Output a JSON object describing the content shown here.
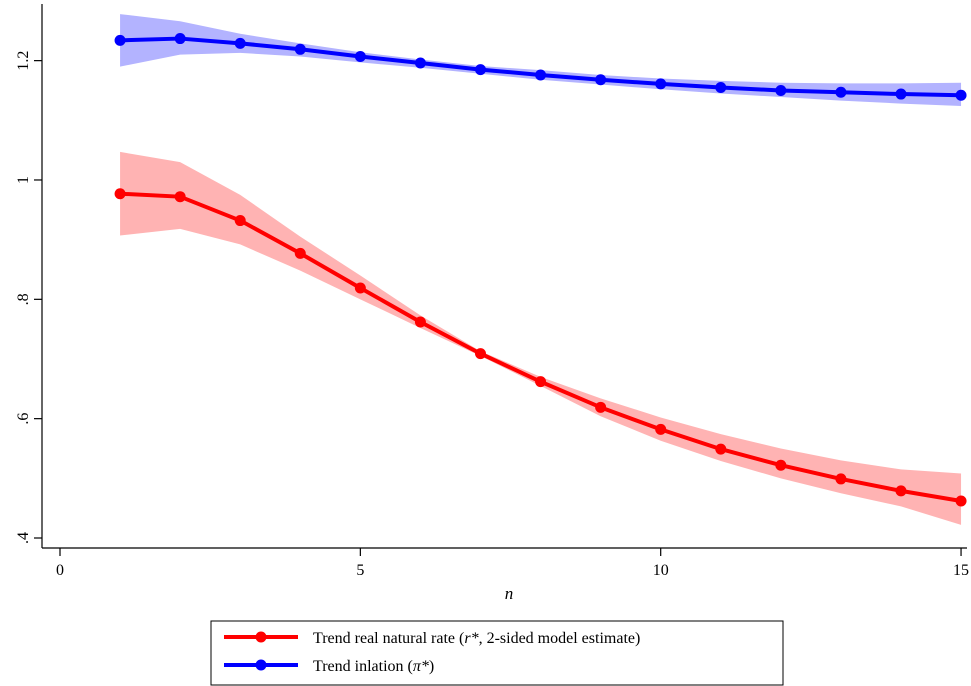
{
  "chart_data": {
    "type": "line",
    "title": "",
    "xlabel": "n",
    "ylabel": "",
    "xlim": [
      0,
      15
    ],
    "ylim": [
      0.4,
      1.3
    ],
    "x_ticks": [
      0,
      5,
      10,
      15
    ],
    "x_tick_labels": [
      "0",
      "5",
      "10",
      "15"
    ],
    "y_ticks": [
      0.4,
      0.6,
      0.8,
      1.0,
      1.2
    ],
    "y_tick_labels": [
      ".4",
      ".6",
      ".8",
      "1",
      "1.2"
    ],
    "grid": false,
    "legend_position": "bottom",
    "x": [
      1,
      2,
      3,
      4,
      5,
      6,
      7,
      8,
      9,
      10,
      11,
      12,
      13,
      14,
      15
    ],
    "series": [
      {
        "legend_text_before": "Trend real natural rate (",
        "legend_text_symbol": "r*",
        "legend_text_after": ", 2-sided model estimate)",
        "color": "#ff0000",
        "band_color": "#ffb3b3",
        "values": [
          0.977,
          0.972,
          0.932,
          0.877,
          0.819,
          0.762,
          0.709,
          0.662,
          0.619,
          0.582,
          0.549,
          0.522,
          0.499,
          0.479,
          0.462
        ],
        "lower": [
          0.907,
          0.918,
          0.892,
          0.848,
          0.8,
          0.752,
          0.705,
          0.655,
          0.604,
          0.563,
          0.529,
          0.5,
          0.475,
          0.453,
          0.422
        ],
        "upper": [
          1.047,
          1.03,
          0.975,
          0.905,
          0.84,
          0.773,
          0.713,
          0.67,
          0.634,
          0.602,
          0.574,
          0.55,
          0.53,
          0.515,
          0.508
        ]
      },
      {
        "legend_text_before": "Trend inlation (",
        "legend_text_symbol": "π*",
        "legend_text_after": ")",
        "color": "#0000ff",
        "band_color": "#b3b3ff",
        "values": [
          1.234,
          1.237,
          1.229,
          1.219,
          1.207,
          1.196,
          1.185,
          1.176,
          1.168,
          1.161,
          1.155,
          1.15,
          1.147,
          1.144,
          1.142
        ],
        "lower": [
          1.19,
          1.21,
          1.213,
          1.207,
          1.197,
          1.188,
          1.178,
          1.168,
          1.16,
          1.152,
          1.145,
          1.139,
          1.133,
          1.128,
          1.124
        ],
        "upper": [
          1.278,
          1.266,
          1.245,
          1.229,
          1.214,
          1.202,
          1.191,
          1.184,
          1.176,
          1.17,
          1.166,
          1.163,
          1.162,
          1.162,
          1.163
        ]
      }
    ]
  }
}
